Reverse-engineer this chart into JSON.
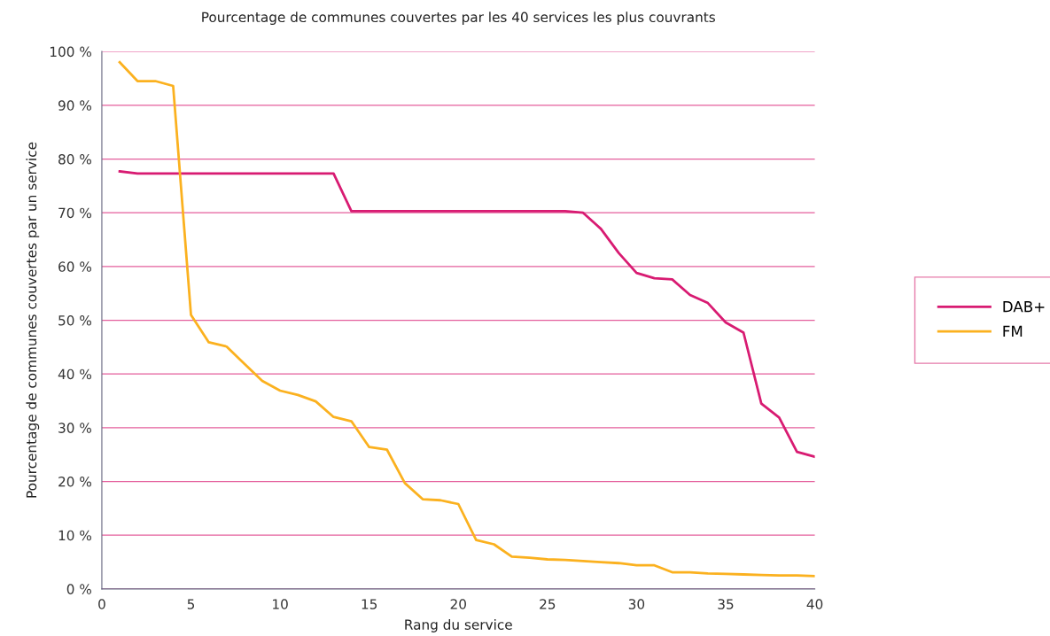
{
  "chart_data": {
    "type": "line",
    "title": "Pourcentage de communes couvertes par les 40 services les plus couvrants",
    "xlabel": "Rang du service",
    "ylabel": "Pourcentage de communes couvertes par un service",
    "x": [
      1,
      2,
      3,
      4,
      5,
      6,
      7,
      8,
      9,
      10,
      11,
      12,
      13,
      14,
      15,
      16,
      17,
      18,
      19,
      20,
      21,
      22,
      23,
      24,
      25,
      26,
      27,
      28,
      29,
      30,
      31,
      32,
      33,
      34,
      35,
      36,
      37,
      38,
      39,
      40
    ],
    "series": [
      {
        "name": "DAB+",
        "color": "#d81b72",
        "values": [
          77.7,
          77.3,
          77.3,
          77.3,
          77.3,
          77.3,
          77.3,
          77.3,
          77.3,
          77.3,
          77.3,
          77.3,
          77.3,
          70.3,
          70.3,
          70.3,
          70.3,
          70.3,
          70.3,
          70.3,
          70.3,
          70.3,
          70.3,
          70.3,
          70.3,
          70.3,
          70.0,
          67,
          62.5,
          58.8,
          57.8,
          57.6,
          54.7,
          53.2,
          49.6,
          47.7,
          34.5,
          31.9,
          25.5,
          24.6
        ]
      },
      {
        "name": "FM",
        "color": "#fbb11f",
        "values": [
          98,
          94.5,
          94.5,
          93.6,
          51,
          45.9,
          45.1,
          41.9,
          38.7,
          36.9,
          36.1,
          34.9,
          32,
          31.2,
          26.4,
          25.9,
          19.7,
          16.7,
          16.5,
          15.8,
          9.1,
          8.3,
          6,
          5.8,
          5.5,
          5.4,
          5.2,
          5.0,
          4.8,
          4.4,
          4.4,
          3.1,
          3.1,
          2.9,
          2.8,
          2.7,
          2.6,
          2.5,
          2.5,
          2.4
        ]
      }
    ],
    "xlim": [
      0,
      40
    ],
    "xticks": [
      0,
      5,
      10,
      15,
      20,
      25,
      30,
      35,
      40
    ],
    "ylim": [
      0,
      100
    ],
    "yticks": [
      {
        "value": 0,
        "label": "0 %"
      },
      {
        "value": 10,
        "label": "10 %"
      },
      {
        "value": 20,
        "label": "20 %"
      },
      {
        "value": 30,
        "label": "30 %"
      },
      {
        "value": 40,
        "label": "40 %"
      },
      {
        "value": 50,
        "label": "50 %"
      },
      {
        "value": 60,
        "label": "60 %"
      },
      {
        "value": 70,
        "label": "70 %"
      },
      {
        "value": 80,
        "label": "80 %"
      },
      {
        "value": 90,
        "label": "90 %"
      },
      {
        "value": 100,
        "label": "100 %"
      }
    ],
    "grid": "y",
    "legend": "right",
    "marker": "none",
    "line_style": "solid"
  }
}
